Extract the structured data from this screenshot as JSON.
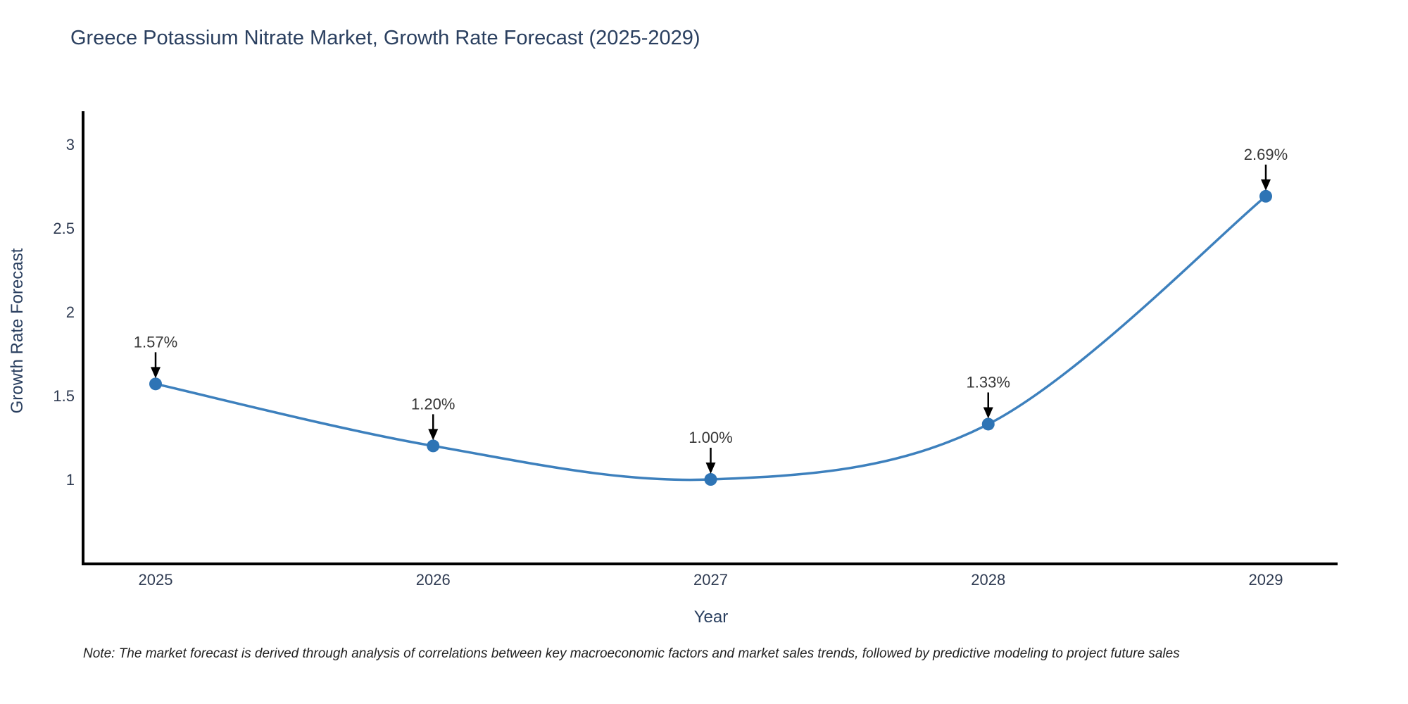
{
  "chart": {
    "note": "Note: The market forecast is derived through analysis of correlations between key macroeconomic factors and market sales trends, followed by predictive modeling to project future sales",
    "colors": {
      "line": "#3d80bd",
      "marker": "#2e74b5",
      "axis": "#000000",
      "tick_text": "#2f3b52",
      "title_text": "#2a3f5f",
      "annotation": "#363636"
    }
  },
  "chart_data": {
    "type": "line",
    "title": "Greece Potassium Nitrate Market, Growth Rate Forecast (2025-2029)",
    "xlabel": "Year",
    "ylabel": "Growth Rate Forecast",
    "x": [
      2025,
      2026,
      2027,
      2028,
      2029
    ],
    "values": [
      1.57,
      1.2,
      1.0,
      1.33,
      2.69
    ],
    "point_labels": [
      "1.57%",
      "1.20%",
      "1.00%",
      "1.33%",
      "2.69%"
    ],
    "xtick_labels": [
      "2025",
      "2026",
      "2027",
      "2028",
      "2029"
    ],
    "yticks": [
      1,
      1.5,
      2,
      2.5,
      3
    ],
    "ytick_labels": [
      "1",
      "1.5",
      "2",
      "2.5",
      "3"
    ],
    "ylim": [
      0.5,
      3.2
    ],
    "line_shape": "spline",
    "grid": false,
    "legend": false
  }
}
